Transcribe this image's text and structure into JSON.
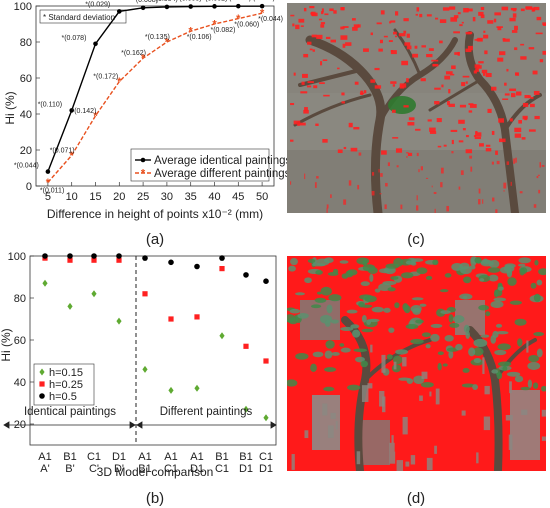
{
  "panel_labels": [
    "(a)",
    "(b)",
    "(c)",
    "(d)"
  ],
  "colors": {
    "black": "#000000",
    "orange": "#e8501e",
    "red": "#ff2020",
    "green": "#5faa32",
    "tree_bg": "#8a8880"
  },
  "chart_data": [
    {
      "type": "line",
      "ylabel": "Hi (%)",
      "xlabel": "Difference in height of points x10⁻² (mm)",
      "annotation_box": "* Standard deviation",
      "xlim": [
        5,
        50
      ],
      "ylim": [
        0,
        100
      ],
      "x": [
        5,
        10,
        15,
        20,
        25,
        30,
        35,
        40,
        45,
        50
      ],
      "xticks": [
        "5",
        "10",
        "15",
        "20",
        "25",
        "30",
        "35",
        "40",
        "45",
        "50"
      ],
      "yticks": [
        "0",
        "20",
        "40",
        "60",
        "80",
        "100"
      ],
      "series": [
        {
          "name": "Average identical paintings",
          "color": "#000000",
          "values": [
            8,
            42,
            79,
            97,
            99,
            99.5,
            99.7,
            99.8,
            99.9,
            99.9
          ],
          "sd_labels": [
            "*(0.044)",
            "*(0.110)",
            "*(0.078)",
            "*(0.029)",
            "*(0.008)",
            "*(0.004)",
            "*(0.003)",
            "*(0.002)",
            "*(0.002)",
            "*(0.001)"
          ]
        },
        {
          "name": "Average different paintings",
          "color": "#e8501e",
          "values": [
            2,
            17,
            39,
            58,
            71,
            80,
            86,
            90,
            93,
            96
          ],
          "sd_labels": [
            "*(0.011)",
            "*(0.071)",
            "*(0.142)",
            "*(0.172)",
            "*(0.162)",
            "*(0.135)",
            "*(0.106)",
            "*(0.082)",
            "*(0.060)",
            "*(0.044)"
          ]
        }
      ]
    },
    {
      "type": "scatter",
      "ylabel": "Hi (%)",
      "xlabel": "3D Model comparison",
      "ylim": [
        10,
        100
      ],
      "yticks": [
        "20",
        "40",
        "60",
        "80",
        "100"
      ],
      "categories": [
        [
          "A1",
          "A'"
        ],
        [
          "B1",
          "B'"
        ],
        [
          "C1",
          "C'"
        ],
        [
          "D1",
          "D'"
        ],
        [
          "A1",
          "B1"
        ],
        [
          "A1",
          "C1"
        ],
        [
          "A1",
          "D1"
        ],
        [
          "B1",
          "C1"
        ],
        [
          "B1",
          "D1"
        ],
        [
          "C1",
          "D1"
        ]
      ],
      "group_labels": [
        "Identical paintings",
        "Different paintings"
      ],
      "series": [
        {
          "name": "h=0.15",
          "color": "#5faa32",
          "marker": "diamond",
          "values": [
            87,
            76,
            82,
            69,
            46,
            36,
            37,
            62,
            27,
            23
          ]
        },
        {
          "name": "h=0.25",
          "color": "#ff2020",
          "marker": "square",
          "values": [
            99,
            98,
            98,
            98,
            82,
            70,
            71,
            94,
            57,
            50
          ]
        },
        {
          "name": "h=0.5",
          "color": "#000000",
          "marker": "circle",
          "values": [
            100,
            100,
            100,
            100,
            99,
            97,
            95,
            99,
            91,
            88
          ]
        }
      ]
    }
  ]
}
